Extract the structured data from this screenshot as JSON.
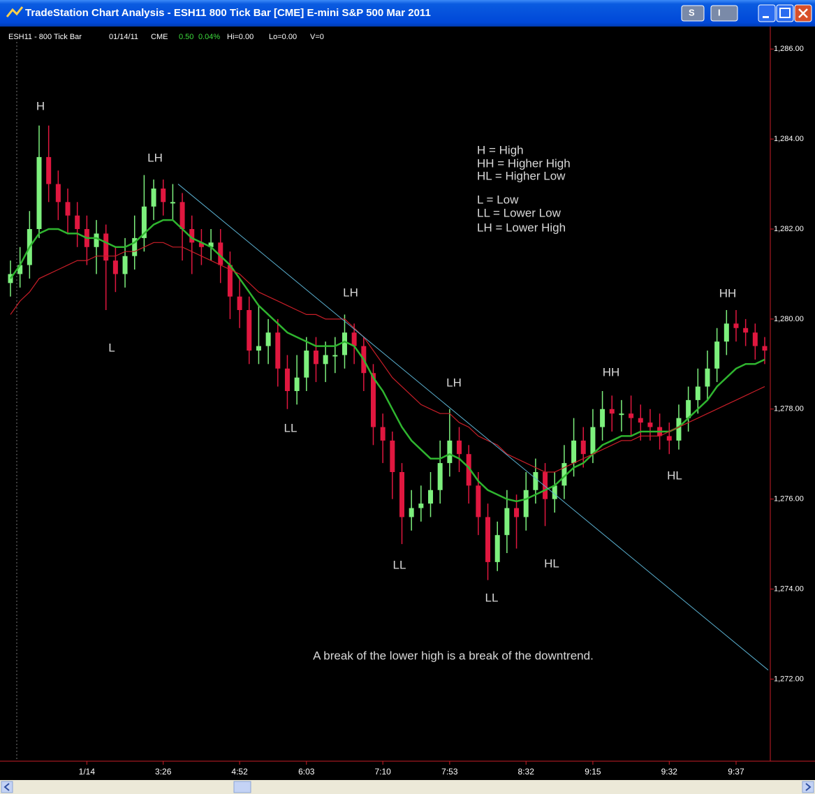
{
  "window": {
    "title": "TradeStation Chart Analysis - ESH11 800 Tick Bar [CME] E-mini S&P 500 Mar 2011",
    "buttons": [
      "S",
      "I"
    ]
  },
  "chart_data": {
    "type": "candlestick",
    "status": [
      {
        "text": "ESH11 - 800 Tick Bar",
        "color": "#ffffff"
      },
      {
        "text": "01/14/11",
        "color": "#ffffff"
      },
      {
        "text": "CME",
        "color": "#ffffff"
      },
      {
        "text": "0.50",
        "color": "#3ddc3d"
      },
      {
        "text": "0.04%",
        "color": "#3ddc3d"
      },
      {
        "text": "Hi=0.00",
        "color": "#ffffff"
      },
      {
        "text": "Lo=0.00",
        "color": "#ffffff"
      },
      {
        "text": "V=0",
        "color": "#ffffff"
      }
    ],
    "categories": [
      null,
      null,
      null,
      null,
      null,
      null,
      null,
      null,
      "1/14",
      null,
      null,
      null,
      null,
      null,
      null,
      null,
      "3:26",
      null,
      null,
      null,
      null,
      null,
      null,
      null,
      "4:52",
      null,
      null,
      null,
      null,
      null,
      null,
      "6:03",
      null,
      null,
      null,
      null,
      null,
      null,
      null,
      "7:10",
      null,
      null,
      null,
      null,
      null,
      null,
      "7:53",
      null,
      null,
      null,
      null,
      null,
      null,
      null,
      "8:32",
      null,
      null,
      null,
      null,
      null,
      null,
      "9:15",
      null,
      null,
      null,
      null,
      null,
      null,
      null,
      "9:32",
      null,
      null,
      null,
      null,
      null,
      null,
      "9:37",
      null,
      null,
      null
    ],
    "open": [
      1280.8,
      1281.0,
      1281.2,
      1282.0,
      1283.6,
      1283.0,
      1282.6,
      1282.3,
      1282.0,
      1281.6,
      1281.9,
      1281.3,
      1281.0,
      1281.4,
      1281.8,
      1282.5,
      1282.9,
      1282.6,
      1282.6,
      1282.0,
      1281.7,
      1281.6,
      1281.7,
      1281.2,
      1280.5,
      1280.2,
      1279.3,
      1279.4,
      1279.7,
      1278.9,
      1278.4,
      1278.7,
      1279.3,
      1279.0,
      1279.2,
      1279.2,
      1279.7,
      1279.4,
      1278.8,
      1277.6,
      1277.3,
      1276.6,
      1275.6,
      1275.8,
      1275.9,
      1276.2,
      1276.8,
      1277.3,
      1277.0,
      1276.3,
      1275.6,
      1274.6,
      1275.2,
      1275.8,
      1275.6,
      1276.2,
      1276.6,
      1276.0,
      1276.3,
      1276.8,
      1277.3,
      1277.0,
      1277.6,
      1278.0,
      1277.9,
      1277.9,
      1277.8,
      1277.7,
      1277.6,
      1277.4,
      1277.3,
      1277.8,
      1278.2,
      1278.5,
      1278.9,
      1279.5,
      1279.9,
      1279.8,
      1279.7,
      1279.4
    ],
    "high": [
      1281.3,
      1281.6,
      1282.4,
      1284.3,
      1284.3,
      1283.3,
      1282.9,
      1282.6,
      1282.3,
      1282.2,
      1282.1,
      1281.6,
      1281.8,
      1282.3,
      1283.2,
      1283.1,
      1283.1,
      1283.0,
      1282.8,
      1282.3,
      1282.0,
      1282.0,
      1282.0,
      1281.5,
      1280.9,
      1280.5,
      1280.3,
      1280.0,
      1280.0,
      1279.2,
      1279.2,
      1279.6,
      1279.6,
      1279.5,
      1279.6,
      1280.1,
      1279.9,
      1279.6,
      1279.0,
      1277.9,
      1277.5,
      1276.8,
      1276.2,
      1276.3,
      1276.6,
      1277.3,
      1278.0,
      1277.6,
      1277.2,
      1276.6,
      1275.9,
      1275.5,
      1276.2,
      1276.1,
      1276.6,
      1276.9,
      1276.8,
      1276.6,
      1277.2,
      1277.8,
      1277.6,
      1278.0,
      1278.4,
      1278.3,
      1278.2,
      1278.3,
      1278.1,
      1278.0,
      1277.9,
      1277.7,
      1278.1,
      1278.5,
      1278.9,
      1279.3,
      1279.8,
      1280.2,
      1280.2,
      1280.0,
      1279.9,
      1279.6
    ],
    "low": [
      1280.5,
      1280.7,
      1280.9,
      1281.8,
      1282.6,
      1282.2,
      1281.9,
      1281.6,
      1281.2,
      1281.0,
      1280.2,
      1280.6,
      1280.7,
      1281.1,
      1281.5,
      1282.2,
      1282.3,
      1282.2,
      1281.3,
      1281.0,
      1281.2,
      1281.3,
      1280.8,
      1280.0,
      1279.8,
      1279.0,
      1279.0,
      1279.0,
      1278.5,
      1278.0,
      1278.1,
      1278.4,
      1278.6,
      1278.6,
      1278.8,
      1278.9,
      1279.0,
      1278.4,
      1277.2,
      1276.8,
      1276.0,
      1275.0,
      1275.3,
      1275.5,
      1275.6,
      1275.9,
      1276.5,
      1276.6,
      1275.9,
      1275.2,
      1274.2,
      1274.4,
      1274.8,
      1274.9,
      1275.3,
      1275.9,
      1275.4,
      1275.7,
      1276.0,
      1276.5,
      1276.7,
      1276.8,
      1277.3,
      1277.5,
      1277.5,
      1277.4,
      1277.3,
      1277.3,
      1277.1,
      1277.0,
      1277.1,
      1277.5,
      1277.9,
      1278.2,
      1278.6,
      1279.2,
      1279.5,
      1279.4,
      1279.1,
      1279.0
    ],
    "close": [
      1281.0,
      1281.2,
      1282.0,
      1283.6,
      1283.0,
      1282.6,
      1282.3,
      1282.0,
      1281.6,
      1281.9,
      1281.3,
      1281.0,
      1281.4,
      1281.8,
      1282.5,
      1282.9,
      1282.6,
      1282.6,
      1282.0,
      1281.7,
      1281.6,
      1281.7,
      1281.2,
      1280.5,
      1280.2,
      1279.3,
      1279.4,
      1279.7,
      1278.9,
      1278.4,
      1278.7,
      1279.3,
      1279.0,
      1279.2,
      1279.2,
      1279.7,
      1279.4,
      1278.8,
      1277.6,
      1277.3,
      1276.6,
      1275.6,
      1275.8,
      1275.9,
      1276.2,
      1276.8,
      1277.3,
      1277.0,
      1276.3,
      1275.6,
      1274.6,
      1275.2,
      1275.8,
      1275.6,
      1276.2,
      1276.6,
      1276.0,
      1276.3,
      1276.8,
      1277.3,
      1277.0,
      1277.6,
      1278.0,
      1277.9,
      1277.9,
      1277.8,
      1277.7,
      1277.6,
      1277.4,
      1277.3,
      1277.8,
      1278.2,
      1278.5,
      1278.9,
      1279.5,
      1279.9,
      1279.8,
      1279.7,
      1279.4,
      1279.3
    ],
    "up_color": "#7df07d",
    "down_color": "#e0173f",
    "moving_averages": [
      {
        "color": "#2fb52f",
        "values": [
          1280.9,
          1281.2,
          1281.6,
          1281.9,
          1282.0,
          1282.0,
          1281.9,
          1281.9,
          1281.8,
          1281.8,
          1281.7,
          1281.6,
          1281.6,
          1281.7,
          1281.9,
          1282.1,
          1282.2,
          1282.2,
          1282.0,
          1281.8,
          1281.7,
          1281.6,
          1281.4,
          1281.2,
          1280.9,
          1280.6,
          1280.3,
          1280.1,
          1279.9,
          1279.7,
          1279.6,
          1279.5,
          1279.4,
          1279.4,
          1279.4,
          1279.5,
          1279.4,
          1279.1,
          1278.7,
          1278.4,
          1278.0,
          1277.6,
          1277.3,
          1277.1,
          1276.9,
          1276.9,
          1277.0,
          1276.9,
          1276.7,
          1276.4,
          1276.2,
          1276.1,
          1276.0,
          1275.95,
          1276.0,
          1276.1,
          1276.2,
          1276.3,
          1276.5,
          1276.7,
          1276.8,
          1277.0,
          1277.2,
          1277.3,
          1277.4,
          1277.4,
          1277.5,
          1277.5,
          1277.5,
          1277.5,
          1277.6,
          1277.8,
          1278.0,
          1278.2,
          1278.5,
          1278.7,
          1278.9,
          1279.0,
          1279.0,
          1279.1
        ]
      },
      {
        "color": "#c81e28",
        "values": [
          1280.1,
          1280.4,
          1280.6,
          1280.9,
          1281.0,
          1281.1,
          1281.2,
          1281.3,
          1281.3,
          1281.4,
          1281.4,
          1281.4,
          1281.5,
          1281.5,
          1281.6,
          1281.7,
          1281.7,
          1281.6,
          1281.6,
          1281.5,
          1281.4,
          1281.3,
          1281.2,
          1281.1,
          1281.0,
          1280.8,
          1280.6,
          1280.5,
          1280.4,
          1280.3,
          1280.2,
          1280.1,
          1280.1,
          1280.0,
          1280.0,
          1280.0,
          1279.8,
          1279.6,
          1279.3,
          1279.0,
          1278.7,
          1278.5,
          1278.3,
          1278.1,
          1278.0,
          1277.9,
          1277.9,
          1277.7,
          1277.6,
          1277.4,
          1277.3,
          1277.2,
          1277.0,
          1276.9,
          1276.8,
          1276.7,
          1276.6,
          1276.6,
          1276.7,
          1276.8,
          1276.9,
          1277.0,
          1277.1,
          1277.2,
          1277.3,
          1277.3,
          1277.4,
          1277.4,
          1277.4,
          1277.5,
          1277.6,
          1277.7,
          1277.8,
          1277.9,
          1278.0,
          1278.1,
          1278.2,
          1278.3,
          1278.4,
          1278.5
        ]
      }
    ],
    "trendline": {
      "color": "#5ab0d0",
      "values": [
        1283.0,
        1272.2
      ]
    },
    "ylim": [
      1270.3,
      1286.5
    ],
    "yticks": [
      {
        "value": 1272,
        "label": "1,272.00"
      },
      {
        "value": 1274,
        "label": "1,274.00"
      },
      {
        "value": 1276,
        "label": "1,276.00"
      },
      {
        "value": 1278,
        "label": "1,278.00"
      },
      {
        "value": 1280,
        "label": "1,280.00"
      },
      {
        "value": 1282,
        "label": "1,282.00"
      },
      {
        "value": 1284,
        "label": "1,284.00"
      },
      {
        "value": 1286,
        "label": "1,286.00"
      }
    ],
    "annotations": [
      "H",
      "LH",
      "L",
      "LL",
      "LH",
      "LH",
      "LL",
      "LL",
      "HL",
      "HH",
      "HL",
      "HH"
    ],
    "legend_text": [
      "H = High",
      "HH = Higher High",
      "HL = Higher Low",
      "L = Low",
      "LL = Lower Low",
      "LH = Lower High"
    ],
    "note": "A break of the lower high is a break of the downtrend."
  }
}
